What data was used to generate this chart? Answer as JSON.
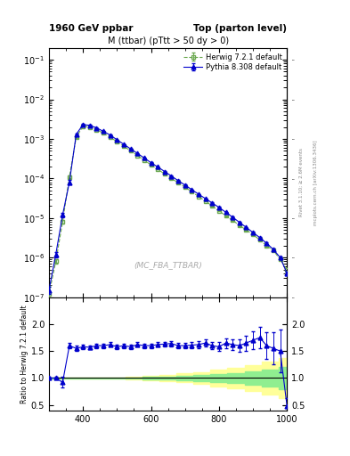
{
  "title_left": "1960 GeV ppbar",
  "title_right": "Top (parton level)",
  "main_title": "M (ttbar) (pTtt > 50 dy > 0)",
  "watermark": "(MC_FBA_TTBAR)",
  "right_label1": "Rivet 3.1.10; ≥ 2.6M events",
  "right_label2": "mcplots.cern.ch [arXiv:1306.3436]",
  "ylabel_ratio": "Ratio to Herwig 7.2.1 default",
  "herwig_color": "#6aa84f",
  "pythia_color": "#0000cc",
  "xlim": [
    300,
    1000
  ],
  "ratio_ylim": [
    0.4,
    2.5
  ],
  "ratio_yticks": [
    0.5,
    1.0,
    1.5,
    2.0
  ],
  "legend_entries": [
    "Herwig 7.2.1 default",
    "Pythia 8.308 default"
  ],
  "herwig_x": [
    300,
    320,
    340,
    360,
    380,
    400,
    420,
    440,
    460,
    480,
    500,
    520,
    540,
    560,
    580,
    600,
    620,
    640,
    660,
    680,
    700,
    720,
    740,
    760,
    780,
    800,
    820,
    840,
    860,
    880,
    900,
    920,
    940,
    960,
    980,
    1000
  ],
  "herwig_y": [
    1.2e-07,
    8e-07,
    8e-06,
    0.00011,
    0.0011,
    0.0021,
    0.002,
    0.0017,
    0.0014,
    0.0011,
    0.00085,
    0.00065,
    0.0005,
    0.00038,
    0.00029,
    0.00022,
    0.00017,
    0.00013,
    0.0001,
    7.8e-05,
    6e-05,
    4.6e-05,
    3.5e-05,
    2.7e-05,
    2e-05,
    1.5e-05,
    1.15e-05,
    8.8e-06,
    6.5e-06,
    5e-06,
    3.8e-06,
    2.8e-06,
    2e-06,
    1.5e-06,
    9e-07,
    5e-07
  ],
  "herwig_yerr": [
    2e-08,
    1e-07,
    8e-07,
    8e-06,
    5e-05,
    5e-05,
    4e-05,
    3e-05,
    2e-05,
    2e-05,
    1.5e-05,
    1.2e-05,
    9e-06,
    7e-06,
    5e-06,
    4e-06,
    3e-06,
    2.5e-06,
    2e-06,
    1.6e-06,
    1.3e-06,
    1e-06,
    8e-07,
    6e-07,
    5e-07,
    4e-07,
    3e-07,
    2.5e-07,
    2e-07,
    1.6e-07,
    1.3e-07,
    1e-07,
    8e-08,
    7e-08,
    5e-08,
    4e-08
  ],
  "pythia_x": [
    300,
    320,
    340,
    360,
    380,
    400,
    420,
    440,
    460,
    480,
    500,
    520,
    540,
    560,
    580,
    600,
    620,
    640,
    660,
    680,
    700,
    720,
    740,
    760,
    780,
    800,
    820,
    840,
    860,
    880,
    900,
    920,
    940,
    960,
    980,
    1000
  ],
  "pythia_y": [
    1.5e-07,
    1.2e-06,
    1.2e-05,
    8e-05,
    0.0013,
    0.0023,
    0.0022,
    0.0019,
    0.00155,
    0.00125,
    0.00095,
    0.00073,
    0.00056,
    0.00043,
    0.00033,
    0.00025,
    0.000195,
    0.00015,
    0.000115,
    8.8e-05,
    6.8e-05,
    5.2e-05,
    4e-05,
    3.1e-05,
    2.4e-05,
    1.85e-05,
    1.4e-05,
    1.05e-05,
    7.8e-06,
    5.8e-06,
    4.3e-06,
    3.2e-06,
    2.3e-06,
    1.6e-06,
    1e-06,
    4e-07
  ],
  "pythia_yerr": [
    3e-08,
    2e-07,
    1.5e-06,
    1e-05,
    6e-05,
    6e-05,
    5e-05,
    4e-05,
    3e-05,
    2.5e-05,
    2e-05,
    1.5e-05,
    1.2e-05,
    9e-06,
    7e-06,
    5e-06,
    4e-06,
    3e-06,
    2.4e-06,
    1.9e-06,
    1.5e-06,
    1.2e-06,
    9e-07,
    7e-07,
    6e-07,
    5e-07,
    4e-07,
    3e-07,
    2.5e-07,
    2e-07,
    1.6e-07,
    1.3e-07,
    1e-07,
    8e-08,
    6e-08,
    5e-08
  ],
  "ratio_x": [
    300,
    320,
    340,
    360,
    380,
    400,
    420,
    440,
    460,
    480,
    500,
    520,
    540,
    560,
    580,
    600,
    620,
    640,
    660,
    680,
    700,
    720,
    740,
    760,
    780,
    800,
    820,
    840,
    860,
    880,
    900,
    920,
    940,
    960,
    980,
    1000
  ],
  "ratio_y": [
    1.0,
    1.0,
    0.92,
    1.6,
    1.55,
    1.58,
    1.57,
    1.6,
    1.6,
    1.62,
    1.58,
    1.6,
    1.58,
    1.62,
    1.6,
    1.6,
    1.62,
    1.63,
    1.64,
    1.6,
    1.6,
    1.61,
    1.62,
    1.65,
    1.6,
    1.58,
    1.65,
    1.62,
    1.6,
    1.65,
    1.7,
    1.75,
    1.6,
    1.55,
    1.5,
    0.48
  ],
  "ratio_yerr": [
    0.02,
    0.03,
    0.1,
    0.05,
    0.05,
    0.04,
    0.04,
    0.04,
    0.04,
    0.04,
    0.04,
    0.04,
    0.04,
    0.04,
    0.04,
    0.04,
    0.04,
    0.04,
    0.05,
    0.05,
    0.05,
    0.06,
    0.06,
    0.07,
    0.07,
    0.08,
    0.09,
    0.1,
    0.12,
    0.14,
    0.16,
    0.2,
    0.25,
    0.3,
    0.4,
    0.15
  ],
  "band_inner_color": "#90ee90",
  "band_outer_color": "#ffff99",
  "band_x": [
    300,
    350,
    400,
    450,
    500,
    550,
    600,
    650,
    700,
    750,
    800,
    850,
    900,
    950,
    1000
  ],
  "band_inner_upper": [
    1.001,
    1.001,
    1.001,
    1.002,
    1.005,
    1.01,
    1.018,
    1.028,
    1.04,
    1.055,
    1.075,
    1.095,
    1.12,
    1.155,
    1.2
  ],
  "band_inner_lower": [
    0.999,
    0.999,
    0.999,
    0.998,
    0.995,
    0.99,
    0.982,
    0.972,
    0.96,
    0.945,
    0.925,
    0.905,
    0.88,
    0.845,
    0.8
  ],
  "band_outer_upper": [
    1.002,
    1.002,
    1.003,
    1.006,
    1.012,
    1.022,
    1.038,
    1.058,
    1.083,
    1.113,
    1.15,
    1.193,
    1.242,
    1.3,
    1.37
  ],
  "band_outer_lower": [
    0.998,
    0.998,
    0.997,
    0.994,
    0.988,
    0.978,
    0.962,
    0.942,
    0.917,
    0.887,
    0.85,
    0.807,
    0.758,
    0.7,
    0.63
  ]
}
